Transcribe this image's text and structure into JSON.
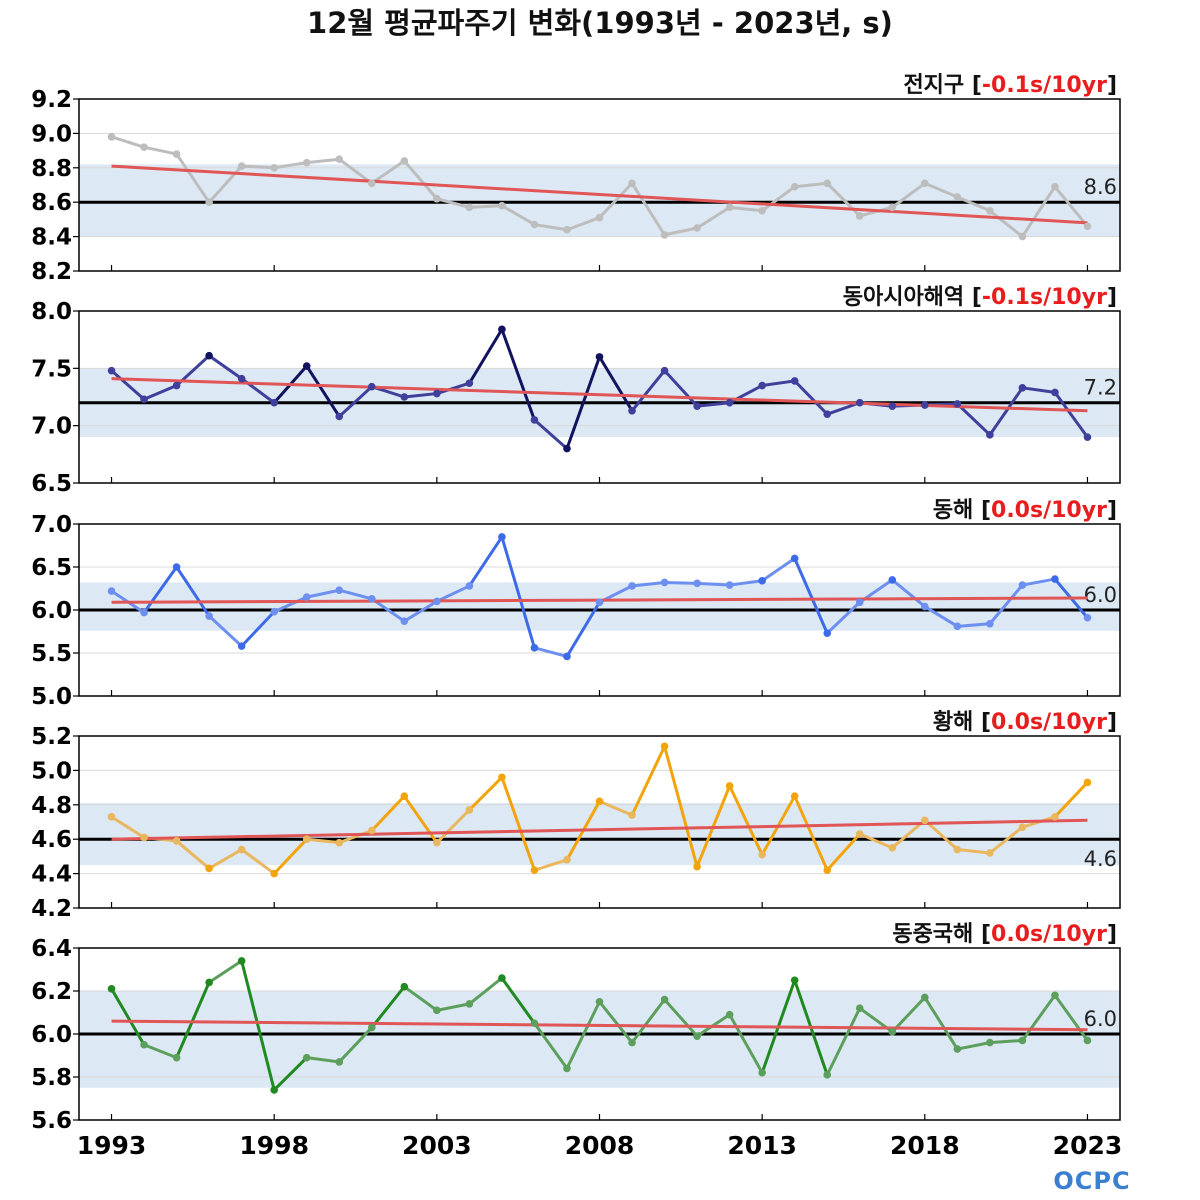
{
  "title": "12월 평균파주기 변화(1993년 - 2023년, s)",
  "logo": "OCPC",
  "chart_data": {
    "type": "line",
    "x_ticks": [
      1993,
      1998,
      2003,
      2008,
      2013,
      2018,
      2023
    ],
    "x_range": [
      1992,
      2024
    ],
    "x": [
      1993,
      1994,
      1995,
      1996,
      1997,
      1998,
      1999,
      2000,
      2001,
      2002,
      2003,
      2004,
      2005,
      2006,
      2007,
      2008,
      2009,
      2010,
      2011,
      2012,
      2013,
      2014,
      2015,
      2016,
      2017,
      2018,
      2019,
      2020,
      2021,
      2022,
      2023
    ],
    "trend_color": "#e05555",
    "mean_line_color": "#000000",
    "band_color": "#dce8f3",
    "panels": [
      {
        "name": "전지구",
        "trend_label": "-0.1s/10yr",
        "color": "#bdbdbd",
        "dark_color": "#bdbdbd",
        "ylim": [
          8.2,
          9.2
        ],
        "yticks": [
          "8.2",
          "8.4",
          "8.6",
          "8.8",
          "9.0",
          "9.2"
        ],
        "mean": 8.6,
        "mean_label": "8.6",
        "mean_label_pos": "above",
        "band": [
          8.4,
          8.82
        ],
        "trend": [
          8.81,
          8.48
        ],
        "values": [
          8.98,
          8.92,
          8.88,
          8.6,
          8.81,
          8.8,
          8.83,
          8.85,
          8.71,
          8.84,
          8.62,
          8.57,
          8.58,
          8.47,
          8.44,
          8.51,
          8.71,
          8.41,
          8.45,
          8.57,
          8.55,
          8.69,
          8.71,
          8.52,
          8.57,
          8.71,
          8.63,
          8.55,
          8.4,
          8.69,
          8.46
        ]
      },
      {
        "name": "동아시아해역",
        "trend_label": "-0.1s/10yr",
        "color": "#3f3f9c",
        "dark_color": "#12125e",
        "ylim": [
          6.5,
          8.0
        ],
        "yticks": [
          "6.5",
          "7.0",
          "7.5",
          "8.0"
        ],
        "mean": 7.2,
        "mean_label": "7.2",
        "mean_label_pos": "above",
        "band": [
          6.9,
          7.5
        ],
        "trend": [
          7.41,
          7.13
        ],
        "values": [
          7.48,
          7.23,
          7.35,
          7.61,
          7.41,
          7.2,
          7.52,
          7.08,
          7.34,
          7.25,
          7.28,
          7.37,
          7.84,
          7.05,
          6.8,
          7.6,
          7.13,
          7.48,
          7.17,
          7.2,
          7.35,
          7.39,
          7.1,
          7.2,
          7.17,
          7.18,
          7.19,
          6.92,
          7.33,
          7.29,
          6.9
        ]
      },
      {
        "name": "동해",
        "trend_label": "0.0s/10yr",
        "color": "#6d8ff0",
        "dark_color": "#3d6ae8",
        "ylim": [
          5.0,
          7.0
        ],
        "yticks": [
          "5.0",
          "5.5",
          "6.0",
          "6.5",
          "7.0"
        ],
        "mean": 6.0,
        "mean_label": "6.0",
        "mean_label_pos": "above",
        "band": [
          5.76,
          6.32
        ],
        "trend": [
          6.09,
          6.14
        ],
        "values": [
          6.22,
          5.97,
          6.5,
          5.93,
          5.58,
          5.98,
          6.15,
          6.23,
          6.13,
          5.87,
          6.1,
          6.28,
          6.85,
          5.56,
          5.46,
          6.09,
          6.28,
          6.32,
          6.31,
          6.29,
          6.34,
          6.6,
          5.73,
          6.09,
          6.35,
          6.04,
          5.81,
          5.84,
          6.29,
          6.36,
          5.91
        ]
      },
      {
        "name": "황해",
        "trend_label": "0.0s/10yr",
        "color": "#e9b75d",
        "dark_color": "#f3a40c",
        "ylim": [
          4.2,
          5.2
        ],
        "yticks": [
          "4.2",
          "4.4",
          "4.6",
          "4.8",
          "5.0",
          "5.2"
        ],
        "mean": 4.6,
        "mean_label": "4.6",
        "mean_label_pos": "below",
        "band": [
          4.45,
          4.81
        ],
        "trend": [
          4.6,
          4.71
        ],
        "values": [
          4.73,
          4.61,
          4.59,
          4.43,
          4.54,
          4.4,
          4.6,
          4.58,
          4.65,
          4.85,
          4.58,
          4.77,
          4.96,
          4.42,
          4.48,
          4.82,
          4.74,
          5.14,
          4.44,
          4.91,
          4.51,
          4.85,
          4.42,
          4.63,
          4.55,
          4.71,
          4.54,
          4.52,
          4.67,
          4.73,
          4.93
        ]
      },
      {
        "name": "동중국해",
        "trend_label": "0.0s/10yr",
        "color": "#5c9f5c",
        "dark_color": "#1f8a1f",
        "ylim": [
          5.6,
          6.4
        ],
        "yticks": [
          "5.6",
          "5.8",
          "6.0",
          "6.2",
          "6.4"
        ],
        "mean": 6.0,
        "mean_label": "6.0",
        "mean_label_pos": "above",
        "band": [
          5.75,
          6.2
        ],
        "trend": [
          6.06,
          6.02
        ],
        "values": [
          6.21,
          5.95,
          5.89,
          6.24,
          6.34,
          5.74,
          5.89,
          5.87,
          6.03,
          6.22,
          6.11,
          6.14,
          6.26,
          6.05,
          5.84,
          6.15,
          5.96,
          6.16,
          5.99,
          6.09,
          5.82,
          6.25,
          5.81,
          6.12,
          6.01,
          6.17,
          5.93,
          5.96,
          5.97,
          6.18,
          5.97
        ]
      }
    ]
  }
}
